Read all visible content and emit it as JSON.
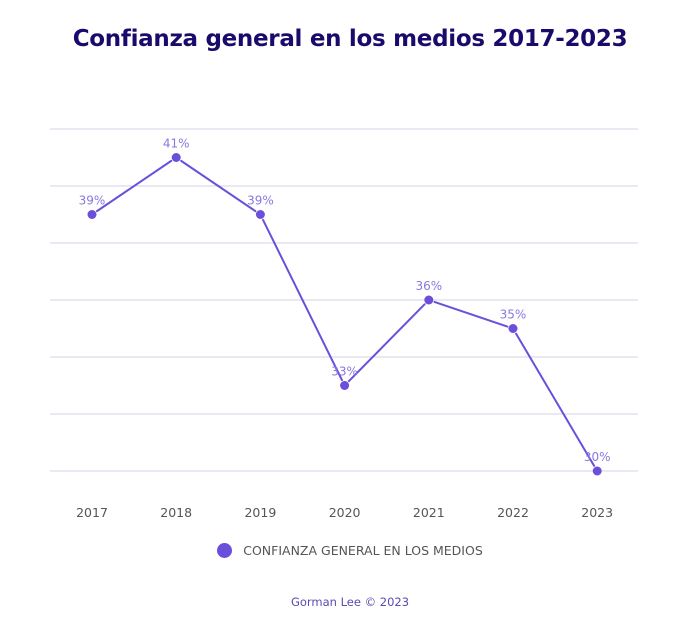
{
  "chart_data": {
    "type": "line",
    "title": "Confianza general en los medios 2017-2023",
    "categories": [
      "2017",
      "2018",
      "2019",
      "2020",
      "2021",
      "2022",
      "2023"
    ],
    "series": [
      {
        "name": "CONFIANZA GENERAL EN LOS MEDIOS",
        "values": [
          39,
          41,
          39,
          33,
          36,
          35,
          30
        ],
        "labels": [
          "39%",
          "41%",
          "39%",
          "33%",
          "36%",
          "35%",
          "30%"
        ],
        "color": "#6b4fdb"
      }
    ],
    "xlabel": "",
    "ylabel": "",
    "ylim": [
      30,
      42
    ],
    "yticks": [
      30,
      32,
      34,
      36,
      38,
      40,
      42
    ],
    "ytick_labels_visible": false,
    "grid": true,
    "legend_position": "bottom"
  },
  "colors": {
    "title": "#1a0a6b",
    "series": "#6b4fdb",
    "data_label": "#8a78e0",
    "grid": "#d6d3e6",
    "tick_label": "#555555",
    "credit": "#5b4bb0"
  },
  "credit": "Gorman Lee © 2023"
}
